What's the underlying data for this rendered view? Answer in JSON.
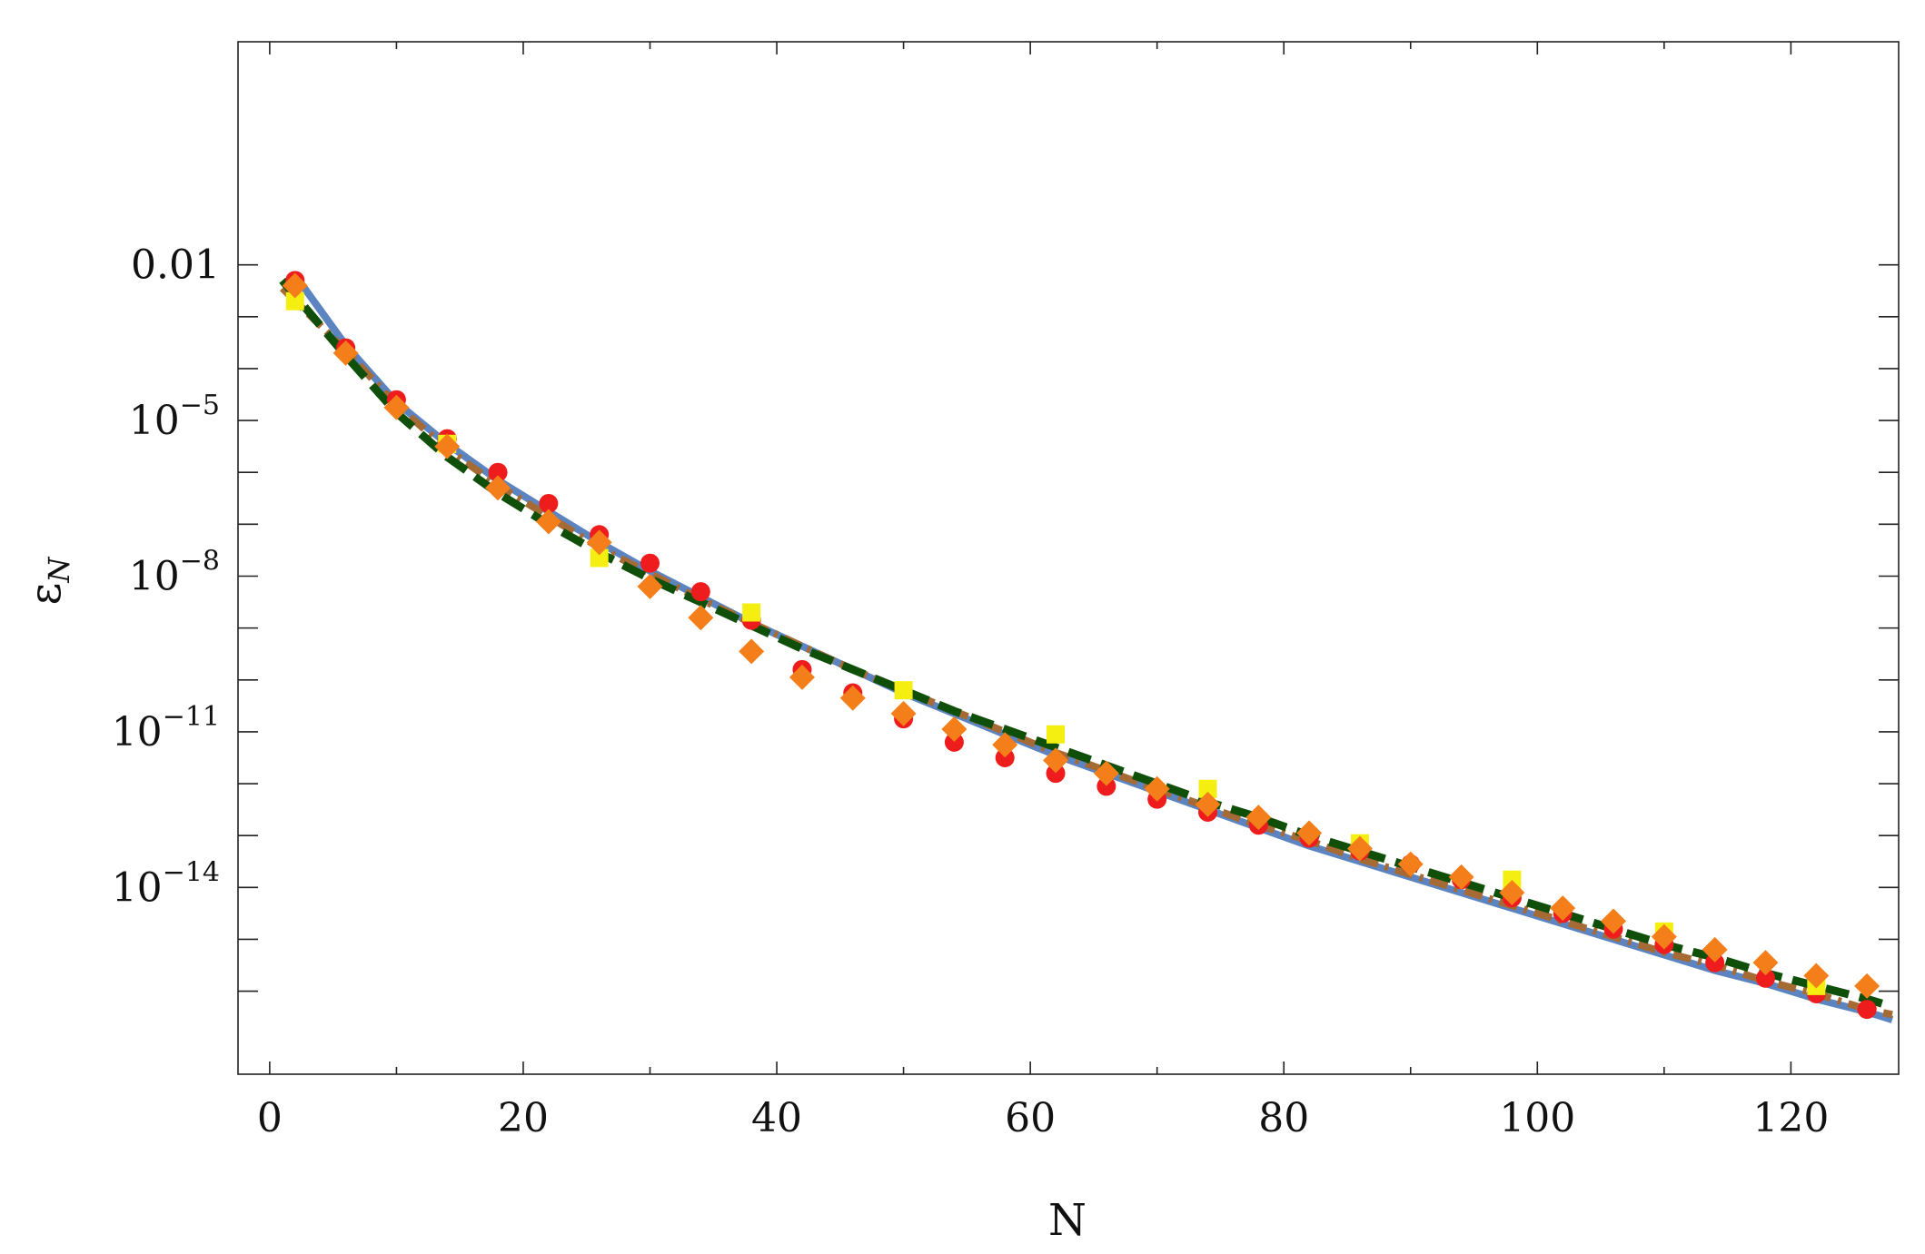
{
  "chart_data": {
    "type": "scatter",
    "title": "",
    "xlabel": "N",
    "ylabel": "ε",
    "ylabel_subscript": "N",
    "x_range": [
      -2.5,
      128.5
    ],
    "y_scale": "log10",
    "y_range_log10": [
      -17.6,
      2.3
    ],
    "x_ticks": [
      {
        "value": 0,
        "label": "0"
      },
      {
        "value": 20,
        "label": "20"
      },
      {
        "value": 40,
        "label": "40"
      },
      {
        "value": 60,
        "label": "60"
      },
      {
        "value": 80,
        "label": "80"
      },
      {
        "value": 100,
        "label": "100"
      },
      {
        "value": 120,
        "label": "120"
      }
    ],
    "y_major_ticks": [
      {
        "log10": -2,
        "base": "0.01",
        "exp": ""
      },
      {
        "log10": -5,
        "base": "10",
        "exp": "−5"
      },
      {
        "log10": -8,
        "base": "10",
        "exp": "−8"
      },
      {
        "log10": -11,
        "base": "10",
        "exp": "−11"
      },
      {
        "log10": -14,
        "base": "10",
        "exp": "−14"
      }
    ],
    "y_minor_ticks_log10": [
      -3,
      -4,
      -6,
      -7,
      -9,
      -10,
      -12,
      -13,
      -15,
      -16
    ],
    "grid": false,
    "legend": "none",
    "series": [
      {
        "kind": "curve",
        "style": "solid",
        "color": "#5b84c0",
        "x": [
          2,
          6,
          10,
          14,
          18,
          22,
          26,
          30,
          34,
          38,
          42,
          46,
          50,
          54,
          58,
          62,
          66,
          70,
          74,
          78,
          82,
          86,
          90,
          94,
          98,
          102,
          106,
          110,
          114,
          118,
          122,
          126,
          128
        ],
        "log10_y": [
          -2.2,
          -3.55,
          -4.65,
          -5.45,
          -6.15,
          -6.75,
          -7.35,
          -7.9,
          -8.4,
          -8.9,
          -9.35,
          -9.8,
          -10.25,
          -10.65,
          -11.05,
          -11.45,
          -11.8,
          -12.15,
          -12.5,
          -12.85,
          -13.2,
          -13.5,
          -13.8,
          -14.1,
          -14.4,
          -14.7,
          -15.0,
          -15.3,
          -15.6,
          -15.85,
          -16.15,
          -16.4,
          -16.55
        ]
      },
      {
        "kind": "curve",
        "style": "dash-dot",
        "color": "#a66a35",
        "x": [
          1,
          6,
          10,
          14,
          18,
          22,
          26,
          30,
          34,
          38,
          42,
          46,
          50,
          54,
          58,
          62,
          66,
          70,
          74,
          78,
          82,
          86,
          90,
          94,
          98,
          102,
          106,
          110,
          114,
          118,
          122,
          126,
          128
        ],
        "log10_y": [
          -2.45,
          -3.65,
          -4.7,
          -5.55,
          -6.25,
          -6.85,
          -7.45,
          -7.95,
          -8.45,
          -8.9,
          -9.35,
          -9.8,
          -10.2,
          -10.6,
          -11.0,
          -11.4,
          -11.75,
          -12.1,
          -12.45,
          -12.8,
          -13.1,
          -13.45,
          -13.75,
          -14.05,
          -14.35,
          -14.65,
          -14.95,
          -15.25,
          -15.5,
          -15.8,
          -16.05,
          -16.35,
          -16.45
        ]
      },
      {
        "kind": "curve",
        "style": "dashed",
        "color": "#0f4f0a",
        "x": [
          1,
          6,
          10,
          14,
          18,
          22,
          26,
          30,
          34,
          38,
          42,
          46,
          50,
          54,
          58,
          62,
          66,
          70,
          74,
          78,
          82,
          86,
          90,
          94,
          98,
          102,
          106,
          110,
          114,
          118,
          122,
          126,
          128
        ],
        "log10_y": [
          -2.3,
          -3.75,
          -4.85,
          -5.7,
          -6.4,
          -7.0,
          -7.55,
          -8.05,
          -8.5,
          -8.95,
          -9.4,
          -9.8,
          -10.2,
          -10.6,
          -10.95,
          -11.3,
          -11.65,
          -12.0,
          -12.35,
          -12.65,
          -13.0,
          -13.3,
          -13.6,
          -13.9,
          -14.2,
          -14.5,
          -14.8,
          -15.1,
          -15.35,
          -15.65,
          -15.9,
          -16.15,
          -16.3
        ]
      },
      {
        "kind": "points",
        "marker": "circle",
        "color": "#ee1c1c",
        "x": [
          2,
          6,
          10,
          14,
          18,
          22,
          26,
          30,
          34,
          38,
          42,
          46,
          50,
          54,
          58,
          62,
          66,
          70,
          74,
          78,
          82,
          86,
          90,
          94,
          98,
          102,
          106,
          110,
          114,
          118,
          122,
          126
        ],
        "log10_y": [
          -2.3,
          -3.6,
          -4.6,
          -5.35,
          -6.0,
          -6.6,
          -7.2,
          -7.75,
          -8.3,
          -8.85,
          -9.8,
          -10.25,
          -10.75,
          -11.2,
          -11.5,
          -11.8,
          -12.05,
          -12.3,
          -12.55,
          -12.8,
          -13.05,
          -13.3,
          -13.55,
          -13.85,
          -14.2,
          -14.5,
          -14.8,
          -15.1,
          -15.45,
          -15.75,
          -16.05,
          -16.35
        ]
      },
      {
        "kind": "points",
        "marker": "square",
        "color": "#f4ef10",
        "x": [
          2,
          14,
          26,
          38,
          50,
          62,
          74,
          86,
          98,
          110,
          122
        ],
        "log10_y": [
          -2.7,
          -5.45,
          -7.65,
          -8.7,
          -10.2,
          -11.05,
          -12.1,
          -13.15,
          -13.85,
          -14.85,
          -15.9
        ]
      },
      {
        "kind": "points",
        "marker": "diamond",
        "color": "#f47f1a",
        "x": [
          2,
          6,
          10,
          14,
          18,
          22,
          26,
          30,
          34,
          38,
          42,
          46,
          50,
          54,
          58,
          62,
          66,
          70,
          74,
          78,
          82,
          86,
          90,
          94,
          98,
          102,
          106,
          110,
          114,
          118,
          122,
          126
        ],
        "log10_y": [
          -2.4,
          -3.7,
          -4.75,
          -5.5,
          -6.3,
          -6.95,
          -7.35,
          -8.2,
          -8.8,
          -9.45,
          -9.95,
          -10.35,
          -10.65,
          -10.95,
          -11.25,
          -11.55,
          -11.8,
          -12.1,
          -12.4,
          -12.65,
          -12.95,
          -13.25,
          -13.55,
          -13.8,
          -14.1,
          -14.4,
          -14.65,
          -14.95,
          -15.2,
          -15.45,
          -15.7,
          -15.9
        ]
      }
    ]
  }
}
